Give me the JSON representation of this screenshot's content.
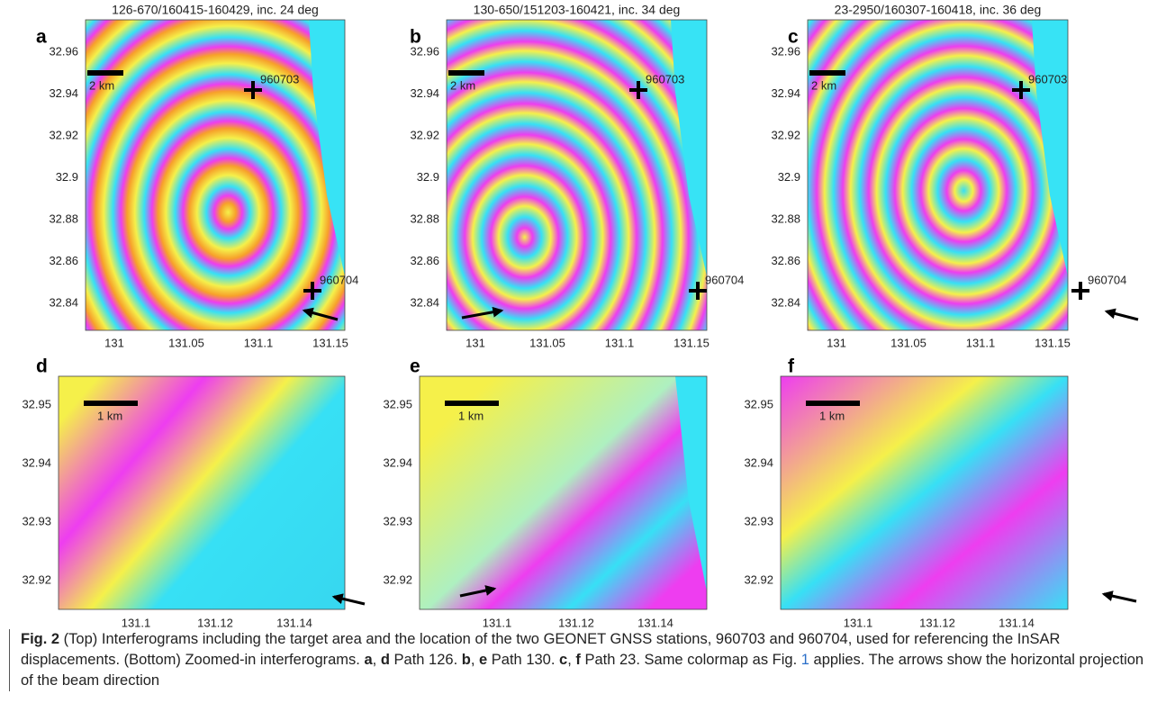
{
  "panels": [
    {
      "letter": "a",
      "title": "126-670/160415-160429, inc. 24 deg",
      "scale_label": "2 km",
      "stations": [
        "960703",
        "960704"
      ],
      "yticks": [
        "32.96",
        "32.94",
        "32.92",
        "32.9",
        "32.88",
        "32.86",
        "32.84"
      ],
      "xticks": [
        "131",
        "131.05",
        "131.1",
        "131.15"
      ]
    },
    {
      "letter": "b",
      "title": "130-650/151203-160421, inc. 34 deg",
      "scale_label": "2 km",
      "stations": [
        "960703",
        "960704"
      ],
      "yticks": [
        "32.96",
        "32.94",
        "32.92",
        "32.9",
        "32.88",
        "32.86",
        "32.84"
      ],
      "xticks": [
        "131",
        "131.05",
        "131.1",
        "131.15"
      ]
    },
    {
      "letter": "c",
      "title": "23-2950/160307-160418, inc. 36 deg",
      "scale_label": "2 km",
      "stations": [
        "960703",
        "960704"
      ],
      "yticks": [
        "32.96",
        "32.94",
        "32.92",
        "32.9",
        "32.88",
        "32.86",
        "32.84"
      ],
      "xticks": [
        "131",
        "131.05",
        "131.1",
        "131.15"
      ]
    },
    {
      "letter": "d",
      "scale_label": "1 km",
      "yticks": [
        "32.95",
        "32.94",
        "32.93",
        "32.92"
      ],
      "xticks": [
        "131.1",
        "131.12",
        "131.14"
      ]
    },
    {
      "letter": "e",
      "scale_label": "1 km",
      "yticks": [
        "32.95",
        "32.94",
        "32.93",
        "32.92"
      ],
      "xticks": [
        "131.1",
        "131.12",
        "131.14"
      ]
    },
    {
      "letter": "f",
      "scale_label": "1 km",
      "yticks": [
        "32.95",
        "32.94",
        "32.93",
        "32.92"
      ],
      "xticks": [
        "131.1",
        "131.12",
        "131.14"
      ]
    }
  ],
  "caption": {
    "label": "Fig. 2",
    "parts": [
      " (Top) Interferograms including the target area and the location of the two GEONET GNSS stations, 960703 and 960704, used for referencing the InSAR displacements. (Bottom) Zoomed-in interferograms. ",
      "a",
      ", ",
      "d",
      " Path 126. ",
      "b",
      ", ",
      "e",
      " Path 130. ",
      "c",
      ", ",
      "f",
      " Path 23. Same colormap as Fig. ",
      "1",
      " applies. The arrows show the horizontal projection of the beam direction"
    ]
  }
}
